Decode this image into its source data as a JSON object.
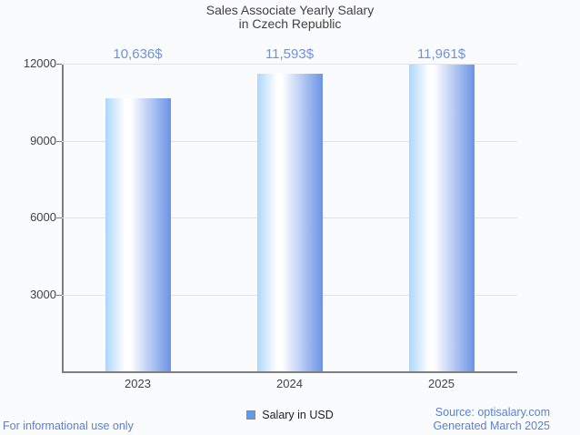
{
  "page": {
    "background": "#fafbfd"
  },
  "chart_data": {
    "type": "bar",
    "title": "Sales Associate Yearly Salary in Czech Republic",
    "title_lines": [
      "Sales Associate Yearly Salary",
      "in Czech Republic"
    ],
    "categories": [
      "2023",
      "2024",
      "2025"
    ],
    "values": [
      10636,
      11593,
      11961
    ],
    "value_labels": [
      "10,636$",
      "11,593$",
      "11,961$"
    ],
    "series_name": "Salary in USD",
    "xlabel": "",
    "ylabel": "",
    "ylim": [
      0,
      12000
    ],
    "yticks": [
      3000,
      6000,
      9000,
      12000
    ],
    "grid": true,
    "legend_position": "bottom",
    "colors": {
      "bar_gradient_left": "#aed6fb",
      "bar_gradient_mid": "#ffffff",
      "bar_gradient_right": "#6b93e6",
      "value_label": "#7191d8",
      "axis_text": "#424242",
      "grid_line": "#e2e3e9",
      "axis_line": "#7f7f7f",
      "legend_swatch": "#5d9bea",
      "footer_text": "#5b7fd8"
    }
  },
  "footer": {
    "left": "For informational use only",
    "source": "Source: optisalary.com",
    "generated": "Generated March 2025"
  }
}
